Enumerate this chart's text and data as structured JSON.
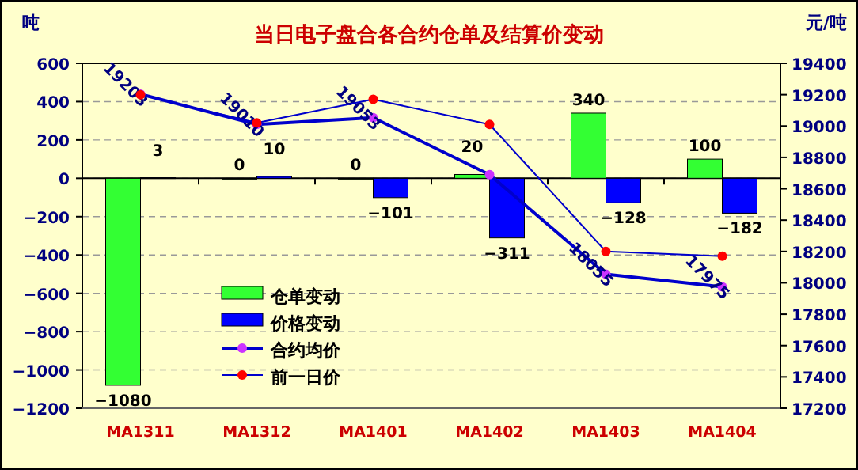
{
  "chart_data": {
    "type": "bar",
    "title": "当日电子盘合各合约仓单及结算价变动",
    "ylabel": "吨",
    "y2label": "元/吨",
    "categories": [
      "MA1311",
      "MA1312",
      "MA1401",
      "MA1402",
      "MA1403",
      "MA1404"
    ],
    "series": [
      {
        "name": "仓单变动",
        "type": "bar",
        "color": "#33ff33",
        "values": [
          -1080,
          0,
          0,
          20,
          340,
          100
        ],
        "value_labels": [
          "−1080",
          "0",
          "0",
          "20",
          "340",
          "100"
        ]
      },
      {
        "name": "价格变动",
        "type": "bar",
        "color": "#0000ff",
        "values": [
          3,
          10,
          -101,
          -311,
          -128,
          -182
        ],
        "value_labels": [
          "3",
          "10",
          "−101",
          "−311",
          "−128",
          "−182"
        ]
      },
      {
        "name": "合约均价",
        "type": "line",
        "axis": "y2",
        "color": "#0000cc",
        "marker": "circle",
        "values": [
          19203,
          19010,
          19053,
          18690,
          18055,
          17975
        ],
        "value_labels": [
          "19203",
          "19010",
          "19053",
          null,
          "18055",
          "17975"
        ]
      },
      {
        "name": "前一日价",
        "type": "line",
        "axis": "y2",
        "color": "#0000cc",
        "marker": "circle",
        "values": [
          19200,
          19020,
          19170,
          19010,
          18200,
          18170
        ]
      }
    ],
    "ylim": [
      -1200,
      600
    ],
    "yticks": [
      -1200,
      -1000,
      -800,
      -600,
      -400,
      -200,
      0,
      200,
      400,
      600
    ],
    "y2lim": [
      17200,
      19400
    ],
    "y2ticks": [
      17200,
      17400,
      17600,
      17800,
      18000,
      18200,
      18400,
      18600,
      18800,
      19000,
      19200,
      19400
    ],
    "grid": "y",
    "legend": "left"
  }
}
